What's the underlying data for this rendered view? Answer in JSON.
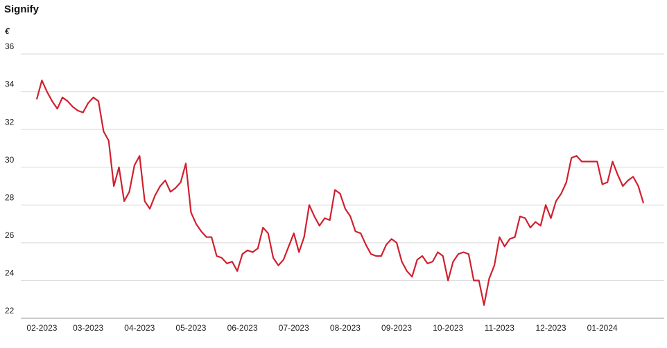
{
  "chart_data": {
    "type": "line",
    "title": "Signify",
    "y_label": "€",
    "color": "#d0202e",
    "ylim": [
      22,
      36
    ],
    "yticks": [
      22,
      24,
      26,
      28,
      30,
      32,
      34,
      36
    ],
    "grid": true,
    "categories": [
      null,
      "02-2023",
      null,
      null,
      null,
      null,
      null,
      null,
      null,
      null,
      "03-2023",
      null,
      null,
      null,
      null,
      null,
      null,
      null,
      null,
      null,
      "04-2023",
      null,
      null,
      null,
      null,
      null,
      null,
      null,
      null,
      null,
      "05-2023",
      null,
      null,
      null,
      null,
      null,
      null,
      null,
      null,
      null,
      "06-2023",
      null,
      null,
      null,
      null,
      null,
      null,
      null,
      null,
      null,
      "07-2023",
      null,
      null,
      null,
      null,
      null,
      null,
      null,
      null,
      null,
      "08-2023",
      null,
      null,
      null,
      null,
      null,
      null,
      null,
      null,
      null,
      "09-2023",
      null,
      null,
      null,
      null,
      null,
      null,
      null,
      null,
      null,
      "10-2023",
      null,
      null,
      null,
      null,
      null,
      null,
      null,
      null,
      null,
      "11-2023",
      null,
      null,
      null,
      null,
      null,
      null,
      null,
      null,
      null,
      "12-2023",
      null,
      null,
      null,
      null,
      null,
      null,
      null,
      null,
      null,
      "01-2024",
      null,
      null,
      null,
      null,
      null,
      null,
      null,
      null
    ],
    "values": [
      33.6,
      34.6,
      34.0,
      33.5,
      33.1,
      33.7,
      33.5,
      33.2,
      33.0,
      32.9,
      33.4,
      33.7,
      33.5,
      31.9,
      31.4,
      29.0,
      30.0,
      28.2,
      28.7,
      30.1,
      30.6,
      28.2,
      27.8,
      28.5,
      29.0,
      29.3,
      28.7,
      28.9,
      29.2,
      30.2,
      27.6,
      27.0,
      26.6,
      26.3,
      26.3,
      25.3,
      25.2,
      24.9,
      25.0,
      24.5,
      25.4,
      25.6,
      25.5,
      25.7,
      26.8,
      26.5,
      25.2,
      24.8,
      25.1,
      25.8,
      26.5,
      25.5,
      26.3,
      28.0,
      27.4,
      26.9,
      27.3,
      27.2,
      28.8,
      28.6,
      27.8,
      27.4,
      26.6,
      26.5,
      25.9,
      25.4,
      25.3,
      25.3,
      25.9,
      26.2,
      26.0,
      25.0,
      24.5,
      24.2,
      25.1,
      25.3,
      24.9,
      25.0,
      25.5,
      25.3,
      24.0,
      25.0,
      25.4,
      25.5,
      25.4,
      24.0,
      24.0,
      22.7,
      24.1,
      24.8,
      26.3,
      25.8,
      26.2,
      26.3,
      27.4,
      27.3,
      26.8,
      27.1,
      26.9,
      28.0,
      27.3,
      28.2,
      28.6,
      29.2,
      30.5,
      30.6,
      30.3,
      30.3,
      30.3,
      30.3,
      29.1,
      29.2,
      30.3,
      29.6,
      29.0,
      29.3,
      29.5,
      29.0,
      28.1
    ]
  }
}
